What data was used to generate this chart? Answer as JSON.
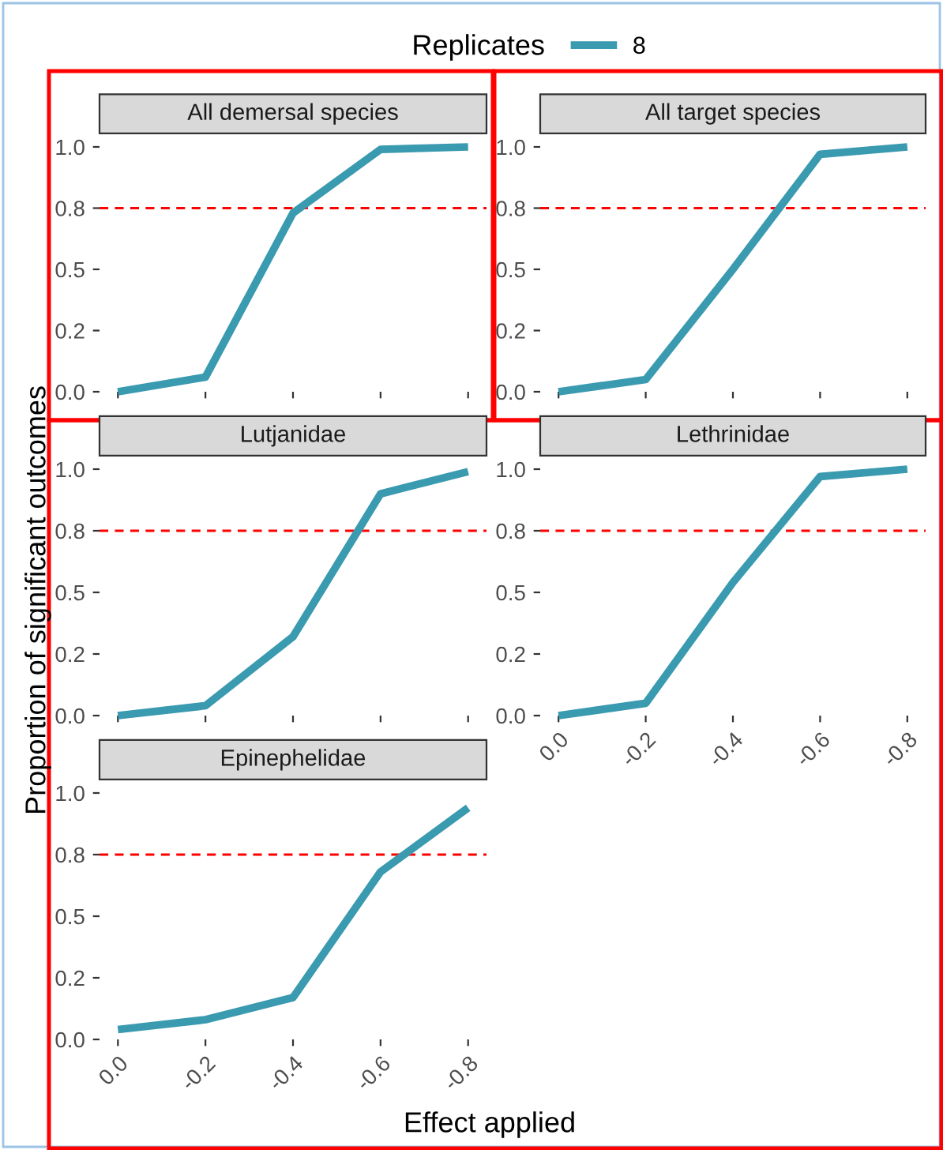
{
  "chart_data": [
    {
      "type": "line",
      "title": "All demersal species",
      "xlabel": "Effect applied",
      "ylabel": "Proportion of significant outcomes",
      "legend_title": "Replicates",
      "legend": "top",
      "tick_labels": "y",
      "categories": [
        "0.0",
        "-0.2",
        "-0.4",
        "-0.6",
        "-0.8"
      ],
      "series": [
        {
          "name": "8",
          "color": "#3a9ab0",
          "values": [
            0.0,
            0.06,
            0.73,
            0.99,
            1.0
          ]
        }
      ],
      "ylim": [
        0,
        1
      ],
      "yticks": [
        {
          "value": 0,
          "label": "0.0"
        },
        {
          "value": 0.25,
          "label": "0.2"
        },
        {
          "value": 0.5,
          "label": "0.5"
        },
        {
          "value": 0.75,
          "label": "0.8"
        },
        {
          "value": 1,
          "label": "1.0"
        }
      ],
      "ref_lines": [
        {
          "axis": "y",
          "value": 0.75,
          "color": "#ff0000",
          "line_style": "dashed"
        }
      ],
      "grid": false
    },
    {
      "type": "line",
      "title": "All target species",
      "tick_labels": "y",
      "categories": [
        "0.0",
        "-0.2",
        "-0.4",
        "-0.6",
        "-0.8"
      ],
      "series": [
        {
          "name": "8",
          "color": "#3a9ab0",
          "values": [
            0.0,
            0.05,
            0.5,
            0.97,
            1.0
          ]
        }
      ],
      "ylim": [
        0,
        1
      ],
      "yticks": [
        {
          "value": 0,
          "label": "0.0"
        },
        {
          "value": 0.25,
          "label": "0.2"
        },
        {
          "value": 0.5,
          "label": "0.5"
        },
        {
          "value": 0.75,
          "label": "0.8"
        },
        {
          "value": 1,
          "label": "1.0"
        }
      ],
      "ref_lines": [
        {
          "axis": "y",
          "value": 0.75,
          "color": "#ff0000",
          "line_style": "dashed"
        }
      ],
      "grid": false
    },
    {
      "type": "line",
      "title": "Lutjanidae",
      "tick_labels": "y",
      "categories": [
        "0.0",
        "-0.2",
        "-0.4",
        "-0.6",
        "-0.8"
      ],
      "series": [
        {
          "name": "8",
          "color": "#3a9ab0",
          "values": [
            0.0,
            0.04,
            0.32,
            0.9,
            0.99
          ]
        }
      ],
      "ylim": [
        0,
        1
      ],
      "yticks": [
        {
          "value": 0,
          "label": "0.0"
        },
        {
          "value": 0.25,
          "label": "0.2"
        },
        {
          "value": 0.5,
          "label": "0.5"
        },
        {
          "value": 0.75,
          "label": "0.8"
        },
        {
          "value": 1,
          "label": "1.0"
        }
      ],
      "ref_lines": [
        {
          "axis": "y",
          "value": 0.75,
          "color": "#ff0000",
          "line_style": "dashed"
        }
      ],
      "grid": false
    },
    {
      "type": "line",
      "title": "Lethrinidae",
      "categories": [
        "0.0",
        "-0.2",
        "-0.4",
        "-0.6",
        "-0.8"
      ],
      "series": [
        {
          "name": "8",
          "color": "#3a9ab0",
          "values": [
            0.0,
            0.05,
            0.54,
            0.97,
            1.0
          ]
        }
      ],
      "ylim": [
        0,
        1
      ],
      "yticks": [
        {
          "value": 0,
          "label": "0.0"
        },
        {
          "value": 0.25,
          "label": "0.2"
        },
        {
          "value": 0.5,
          "label": "0.5"
        },
        {
          "value": 0.75,
          "label": "0.8"
        },
        {
          "value": 1,
          "label": "1.0"
        }
      ],
      "ref_lines": [
        {
          "axis": "y",
          "value": 0.75,
          "color": "#ff0000",
          "line_style": "dashed"
        }
      ],
      "grid": false
    },
    {
      "type": "line",
      "title": "Epinephelidae",
      "categories": [
        "0.0",
        "-0.2",
        "-0.4",
        "-0.6",
        "-0.8"
      ],
      "series": [
        {
          "name": "8",
          "color": "#3a9ab0",
          "values": [
            0.04,
            0.08,
            0.17,
            0.68,
            0.94
          ]
        }
      ],
      "ylim": [
        0,
        1
      ],
      "yticks": [
        {
          "value": 0,
          "label": "0.0"
        },
        {
          "value": 0.25,
          "label": "0.2"
        },
        {
          "value": 0.5,
          "label": "0.5"
        },
        {
          "value": 0.75,
          "label": "0.8"
        },
        {
          "value": 1,
          "label": "1.0"
        }
      ],
      "ref_lines": [
        {
          "axis": "y",
          "value": 0.75,
          "color": "#ff0000",
          "line_style": "dashed"
        }
      ],
      "grid": false
    }
  ]
}
